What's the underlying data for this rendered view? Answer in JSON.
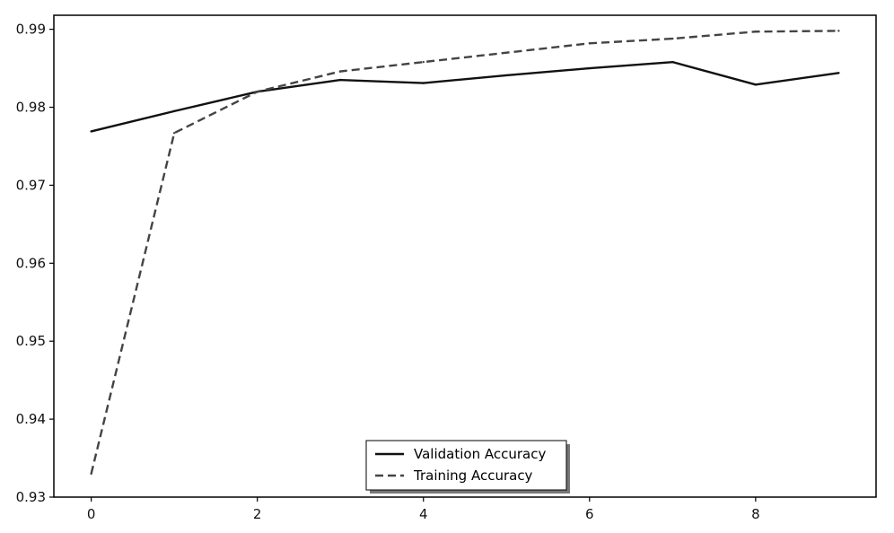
{
  "chart_data": {
    "type": "line",
    "title": "",
    "xlabel": "",
    "ylabel": "",
    "xlim": [
      -0.45,
      9.45
    ],
    "ylim": [
      0.93,
      0.9918
    ],
    "xticks": [
      0,
      2,
      4,
      6,
      8
    ],
    "yticks": [
      0.93,
      0.94,
      0.95,
      0.96,
      0.97,
      0.98,
      0.99
    ],
    "ytick_labels": [
      "0.93",
      "0.94",
      "0.95",
      "0.96",
      "0.97",
      "0.98",
      "0.99"
    ],
    "xtick_labels": [
      "0",
      "2",
      "4",
      "6",
      "8"
    ],
    "grid": false,
    "legend_position": "bottom-center",
    "x": [
      0,
      1,
      2,
      3,
      4,
      5,
      6,
      7,
      8,
      9
    ],
    "series": [
      {
        "name": "Validation Accuracy",
        "style": "solid",
        "color": "#111111",
        "values": [
          0.9769,
          0.9795,
          0.982,
          0.9835,
          0.9831,
          0.9841,
          0.985,
          0.9858,
          0.9829,
          0.9844
        ]
      },
      {
        "name": "Training Accuracy",
        "style": "dashed",
        "color": "#444444",
        "values": [
          0.933,
          0.9767,
          0.982,
          0.9846,
          0.9858,
          0.987,
          0.9882,
          0.9888,
          0.9897,
          0.9898
        ]
      }
    ]
  }
}
